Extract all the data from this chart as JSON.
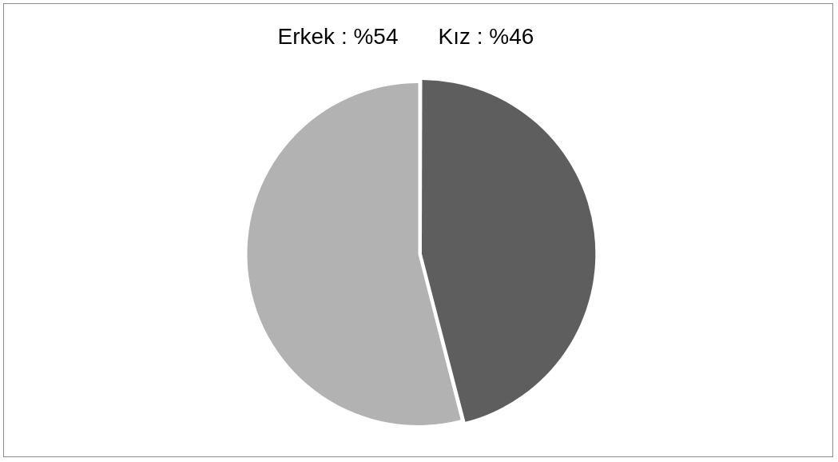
{
  "chart_data": {
    "type": "pie",
    "categories": [
      "Erkek",
      "Kız"
    ],
    "values": [
      54,
      46
    ],
    "colors": [
      "#b2b2b2",
      "#5e5e5e"
    ],
    "value_labels": [
      "%54",
      "%46"
    ]
  }
}
